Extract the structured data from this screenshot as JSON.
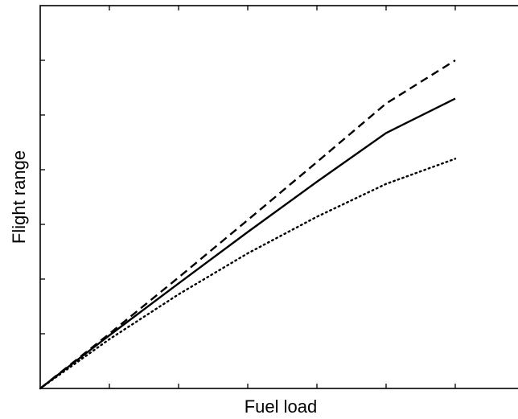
{
  "chart_data": {
    "type": "line",
    "xlabel": "Fuel load",
    "ylabel": "Flight range",
    "xlim": [
      0,
      7
    ],
    "ylim": [
      0,
      7
    ],
    "x_ticks": [
      0,
      1,
      2,
      3,
      4,
      5,
      6,
      7
    ],
    "y_ticks": [
      0,
      1,
      2,
      3,
      4,
      5,
      6,
      7
    ],
    "tick_labels_shown": false,
    "grid": false,
    "legend": "none",
    "series": [
      {
        "style": "dashed",
        "color": "#000000",
        "x": [
          0,
          1,
          2,
          3,
          4,
          5,
          6
        ],
        "y": [
          0,
          1.0,
          2.03,
          3.08,
          4.14,
          5.21,
          6.0
        ]
      },
      {
        "style": "solid",
        "color": "#000000",
        "x": [
          0,
          1,
          2,
          3,
          4,
          5,
          6
        ],
        "y": [
          0,
          0.97,
          1.92,
          2.86,
          3.78,
          4.67,
          5.3
        ]
      },
      {
        "style": "dotted",
        "color": "#000000",
        "x": [
          0,
          1,
          2,
          3,
          4,
          5,
          6
        ],
        "y": [
          0,
          0.9,
          1.72,
          2.47,
          3.14,
          3.74,
          4.2
        ]
      }
    ]
  }
}
